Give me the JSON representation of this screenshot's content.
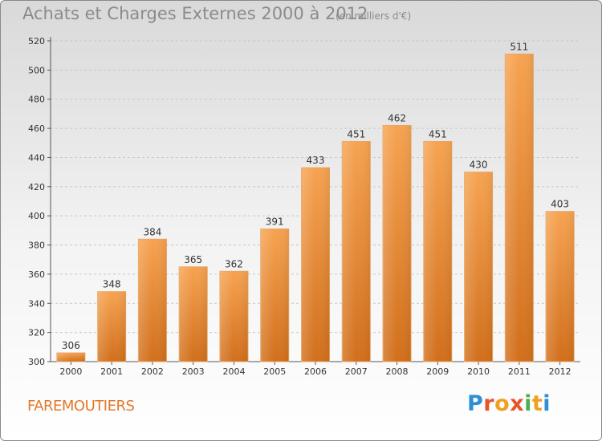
{
  "header": {
    "title": "Achats et Charges Externes 2000 à 2012",
    "subtitle": "(en milliers d'€)"
  },
  "footer": {
    "town": "FAREMOUTIERS",
    "logo_text": "Proxiti"
  },
  "colors": {
    "bar_light": "#f6a351",
    "bar_dark": "#d16f1c",
    "town_text": "#e3782a",
    "logo_letters": [
      "#2f8fd6",
      "#e8542a",
      "#f0a021",
      "#e8542a",
      "#4caf50",
      "#f0a021",
      "#2f8fd6"
    ]
  },
  "chart_data": {
    "type": "bar",
    "title": "Achats et Charges Externes 2000 à 2012",
    "subtitle": "(en milliers d'€)",
    "categories": [
      "2000",
      "2001",
      "2002",
      "2003",
      "2004",
      "2005",
      "2006",
      "2007",
      "2008",
      "2009",
      "2010",
      "2011",
      "2012"
    ],
    "values": [
      306,
      348,
      384,
      365,
      362,
      391,
      433,
      451,
      462,
      451,
      430,
      511,
      403
    ],
    "ylim": [
      300,
      520
    ],
    "yticks": [
      300,
      320,
      340,
      360,
      380,
      400,
      420,
      440,
      460,
      480,
      500,
      520
    ],
    "grid": true,
    "data_labels": true
  }
}
